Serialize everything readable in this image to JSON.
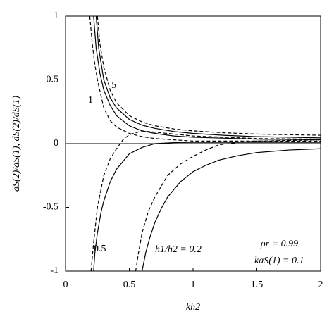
{
  "chart_data": {
    "type": "line",
    "x_label": "kh2",
    "y_label": "aS(2)/aS(1), dS(2)/dS(1)",
    "xlim": [
      0,
      2
    ],
    "ylim": [
      -1,
      1
    ],
    "xticks": [
      0,
      0.5,
      1,
      1.5,
      2
    ],
    "yticks": [
      -1,
      -0.5,
      0,
      0.5,
      1
    ],
    "color": "#000000",
    "series": [
      {
        "style": "dashed",
        "x": [
          0.25,
          0.27,
          0.3,
          0.35,
          0.4,
          0.5,
          0.6,
          0.7,
          0.85,
          1,
          1.25,
          1.5,
          1.75,
          2
        ],
        "values": [
          1,
          0.78,
          0.6,
          0.42,
          0.32,
          0.22,
          0.17,
          0.14,
          0.115,
          0.1,
          0.085,
          0.075,
          0.07,
          0.066
        ]
      },
      {
        "style": "solid",
        "x": [
          0.24,
          0.26,
          0.3,
          0.35,
          0.4,
          0.5,
          0.6,
          0.7,
          0.85,
          1,
          1.25,
          1.5,
          1.75,
          2
        ],
        "values": [
          1,
          0.75,
          0.5,
          0.36,
          0.28,
          0.19,
          0.145,
          0.12,
          0.095,
          0.08,
          0.065,
          0.055,
          0.05,
          0.045
        ]
      },
      {
        "style": "solid",
        "x": [
          0.22,
          0.24,
          0.27,
          0.3,
          0.35,
          0.4,
          0.5,
          0.6,
          0.7,
          0.85,
          1,
          1.5,
          2
        ],
        "values": [
          1,
          0.75,
          0.55,
          0.42,
          0.3,
          0.22,
          0.14,
          0.1,
          0.08,
          0.06,
          0.05,
          0.035,
          0.03
        ]
      },
      {
        "style": "dashed",
        "x": [
          0.19,
          0.21,
          0.23,
          0.25,
          0.3,
          0.35,
          0.4,
          0.5,
          0.6,
          0.7,
          1,
          1.5,
          2
        ],
        "values": [
          1,
          0.78,
          0.62,
          0.5,
          0.28,
          0.18,
          0.13,
          0.08,
          0.055,
          0.04,
          0.02,
          0.02,
          0.02
        ]
      },
      {
        "style": "dashed",
        "x": [
          0.2,
          0.22,
          0.25,
          0.3,
          0.35,
          0.4,
          0.45,
          0.5,
          0.6,
          0.8,
          1,
          1.5,
          2
        ],
        "values": [
          -1,
          -0.78,
          -0.5,
          -0.25,
          -0.12,
          -0.04,
          0.03,
          0.07,
          0.1,
          0.08,
          0.06,
          0.04,
          0.035
        ]
      },
      {
        "style": "solid",
        "x": [
          0.22,
          0.23,
          0.25,
          0.28,
          0.3,
          0.35,
          0.4,
          0.5,
          0.6,
          0.7,
          0.85,
          1,
          1.5,
          2
        ],
        "values": [
          -1,
          -0.86,
          -0.7,
          -0.53,
          -0.45,
          -0.3,
          -0.2,
          -0.08,
          -0.03,
          0,
          0.008,
          0.01,
          0.01,
          0.01
        ]
      },
      {
        "style": "dashed",
        "x": [
          0.55,
          0.57,
          0.6,
          0.65,
          0.7,
          0.8,
          0.9,
          1,
          1.1,
          1.2,
          1.35,
          1.5,
          1.75,
          2
        ],
        "values": [
          -1,
          -0.87,
          -0.7,
          -0.53,
          -0.42,
          -0.25,
          -0.16,
          -0.1,
          -0.05,
          -0.01,
          0.01,
          0.02,
          0.025,
          0.03
        ]
      },
      {
        "style": "solid",
        "x": [
          0.6,
          0.63,
          0.66,
          0.7,
          0.75,
          0.8,
          0.9,
          1,
          1.1,
          1.2,
          1.35,
          1.5,
          1.75,
          2
        ],
        "values": [
          -1,
          -0.85,
          -0.74,
          -0.62,
          -0.51,
          -0.42,
          -0.3,
          -0.22,
          -0.17,
          -0.13,
          -0.095,
          -0.07,
          -0.05,
          -0.04
        ]
      }
    ],
    "annotations": [
      "5",
      "1",
      "0.5",
      "h1/h2 = 0.2",
      "ρr = 0.99",
      "kaS(1) = 0.1"
    ]
  }
}
